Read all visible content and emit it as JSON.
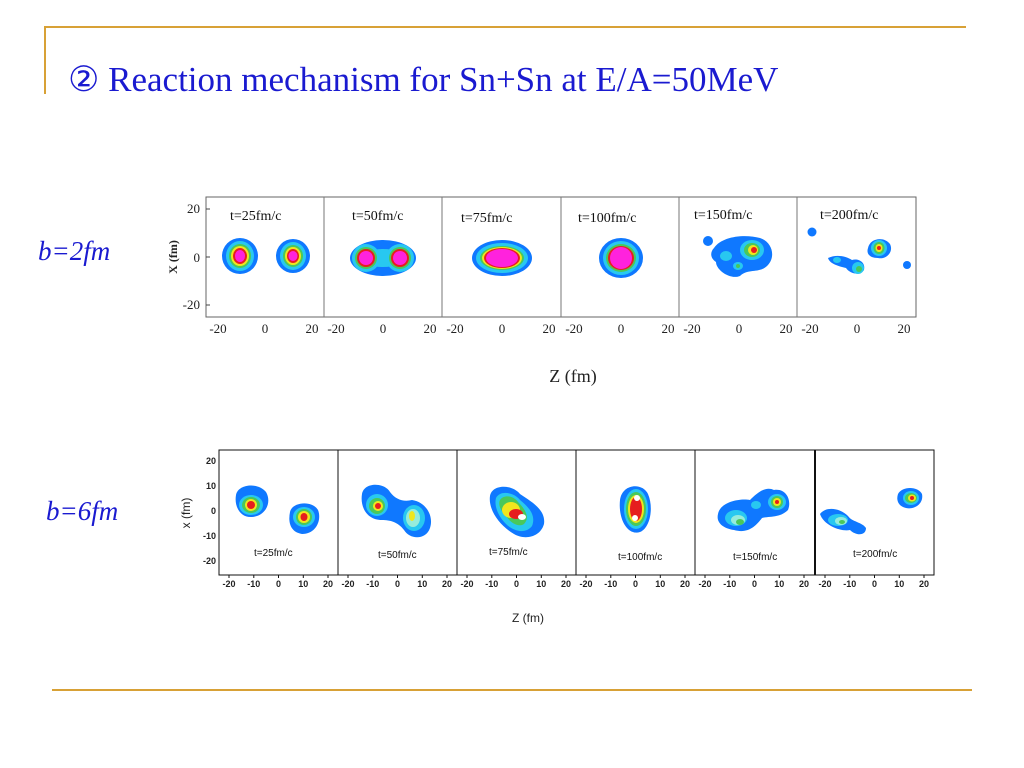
{
  "slide": {
    "title": "② Reaction mechanism for Sn+Sn at E/A=50MeV",
    "colors": {
      "title": "#1a1ad0",
      "accent_line": "#d8a136"
    }
  },
  "figures": [
    {
      "label": "b=2fm",
      "ylabel": "X (fm)",
      "xlabel": "Z (fm)",
      "yticks": [
        "20",
        "0",
        "-20"
      ],
      "xticks": [
        "-20",
        "0",
        "20"
      ],
      "panels": [
        {
          "time": "t=25fm/c"
        },
        {
          "time": "t=50fm/c"
        },
        {
          "time": "t=75fm/c"
        },
        {
          "time": "t=100fm/c"
        },
        {
          "time": "t=150fm/c"
        },
        {
          "time": "t=200fm/c"
        }
      ]
    },
    {
      "label": "b=6fm",
      "ylabel": "x (fm)",
      "xlabel": "Z (fm)",
      "yticks": [
        "20",
        "10",
        "0",
        "-10",
        "-20"
      ],
      "xticks": [
        "-20",
        "-10",
        "0",
        "10",
        "20"
      ],
      "panels": [
        {
          "time": "t=25fm/c"
        },
        {
          "time": "t=50fm/c"
        },
        {
          "time": "t=75fm/c"
        },
        {
          "time": "t=100fm/c"
        },
        {
          "time": "t=150fm/c"
        },
        {
          "time": "t=200fm/c"
        }
      ]
    }
  ],
  "density_colors": [
    "#0f78ff",
    "#28c8f0",
    "#96ecdc",
    "#4ac85a",
    "#f0e61e",
    "#f07814",
    "#e61e1e",
    "#ff22dd",
    "#ffffff"
  ]
}
